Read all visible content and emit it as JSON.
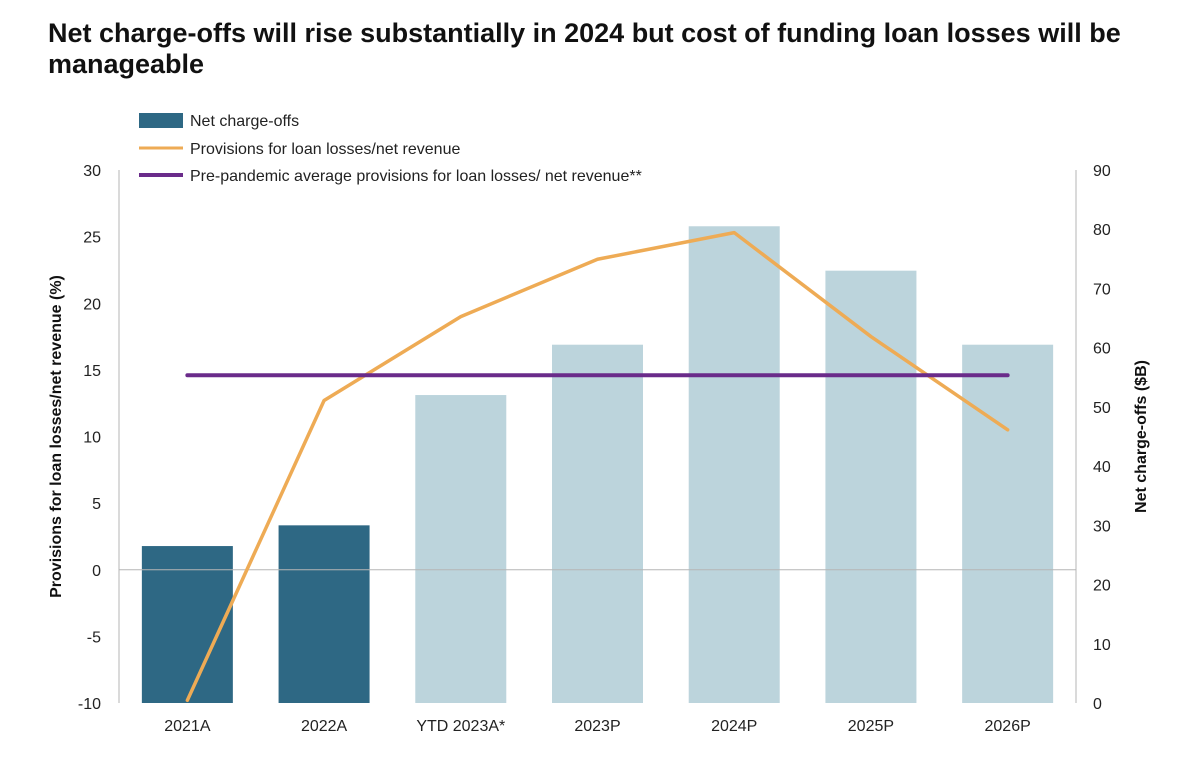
{
  "title": "Net charge-offs will rise substantially in 2024 but cost of funding loan losses will be manageable",
  "chart_data": {
    "type": "bar",
    "categories": [
      "2021A",
      "2022A",
      "YTD 2023A*",
      "2023P",
      "2024P",
      "2025P",
      "2026P"
    ],
    "series": [
      {
        "name": "Net charge-offs",
        "kind": "bar",
        "axis": "right",
        "values": [
          26.5,
          30,
          52,
          60.5,
          80.5,
          73,
          60.5
        ],
        "colors": [
          "#2e6884",
          "#2e6884",
          "#bcd4dc",
          "#bcd4dc",
          "#bcd4dc",
          "#bcd4dc",
          "#bcd4dc"
        ]
      },
      {
        "name": "Provisions for loan losses/net revenue",
        "kind": "line",
        "axis": "left",
        "values": [
          -9.8,
          12.7,
          19,
          23.3,
          25.3,
          17.5,
          10.5
        ],
        "color": "#eeab55"
      },
      {
        "name": "Pre-pandemic average provisions for loan losses/ net revenue**",
        "kind": "line",
        "axis": "left",
        "values": [
          14.6,
          14.6,
          14.6,
          14.6,
          14.6,
          14.6,
          14.6
        ],
        "color": "#6a2b8a"
      }
    ],
    "ylabel_left": "Provisions for loan losses/net revenue (%)",
    "ylabel_right": "Net charge-offs ($B)",
    "ylim_left": [
      -10,
      30
    ],
    "ylim_right": [
      0,
      90
    ],
    "yticks_left": [
      -10,
      -5,
      0,
      5,
      10,
      15,
      20,
      25,
      30
    ],
    "yticks_right": [
      0,
      10,
      20,
      30,
      40,
      50,
      60,
      70,
      80,
      90
    ],
    "legend_position": "top-left",
    "grid": false
  }
}
